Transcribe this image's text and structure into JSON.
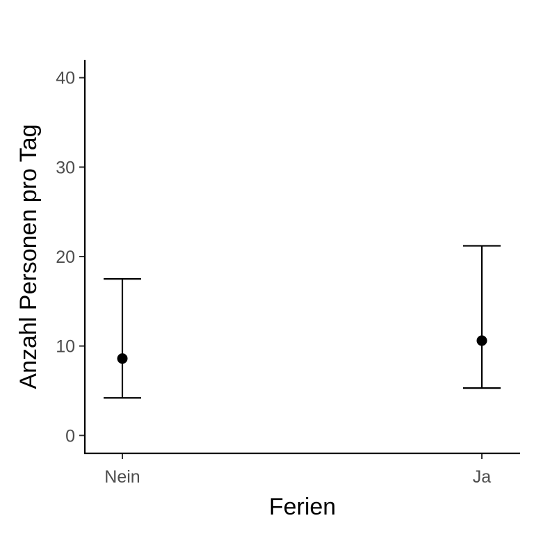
{
  "chart_data": {
    "type": "errorbar",
    "title": "",
    "xlabel": "Ferien",
    "ylabel": "Anzahl Personen pro Tag",
    "categories": [
      "Nein",
      "Ja"
    ],
    "series": [
      {
        "values": [
          8.6,
          10.6
        ],
        "lower": [
          4.2,
          5.3
        ],
        "upper": [
          17.5,
          21.2
        ]
      }
    ],
    "ylim": [
      -2,
      42
    ],
    "yticks": [
      0,
      10,
      20,
      30,
      40
    ],
    "grid": false,
    "legend": "none",
    "colors": {
      "marks": "#000000",
      "tick_text": "#4d4d4d",
      "axis": "#000000"
    }
  }
}
